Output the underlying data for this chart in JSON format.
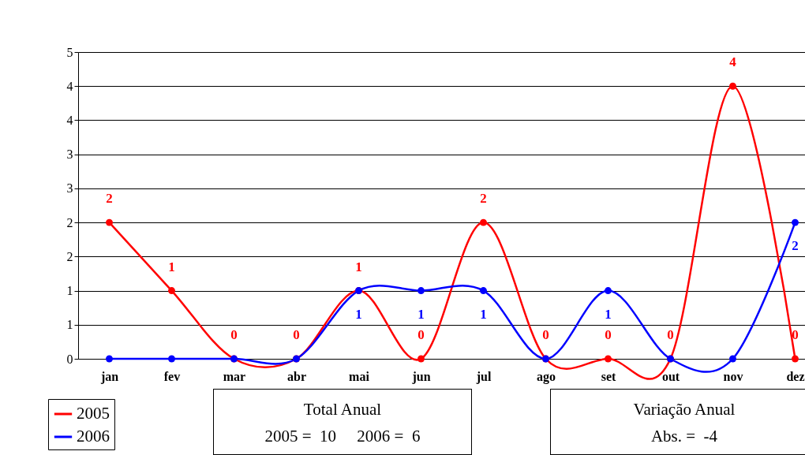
{
  "chart_data": {
    "type": "line",
    "categories": [
      "jan",
      "fev",
      "mar",
      "abr",
      "mai",
      "jun",
      "jul",
      "ago",
      "set",
      "out",
      "nov",
      "dez"
    ],
    "series": [
      {
        "name": "2005",
        "color": "#ff0000",
        "values": [
          2,
          1,
          0,
          0,
          1,
          0,
          2,
          0,
          0,
          0,
          4,
          0
        ],
        "value_labels": [
          "2",
          "1",
          "0",
          "0",
          "1",
          "0",
          "2",
          "0",
          "0",
          "0",
          "4",
          "0"
        ]
      },
      {
        "name": "2006",
        "color": "#0000ff",
        "values": [
          0,
          0,
          0,
          0,
          1,
          1,
          1,
          0,
          1,
          0,
          0,
          2
        ],
        "value_labels": [
          null,
          null,
          null,
          null,
          "1",
          "1",
          "1",
          null,
          "1",
          null,
          null,
          "2"
        ]
      }
    ],
    "ylim": [
      0,
      4.5
    ],
    "yticks": [
      0,
      {
        "value": 0.5,
        "label": "1"
      },
      1,
      {
        "value": 1.5,
        "label": "2"
      },
      2,
      {
        "value": 2.5,
        "label": "3"
      },
      3,
      {
        "value": 3.5,
        "label": "4"
      },
      4,
      {
        "value": 4.5,
        "label": "5"
      }
    ],
    "grid": "y",
    "legend": "bottom left",
    "marker": "circle",
    "line_style": "solid",
    "annotations": [
      "Total Anual\n2005 =  10     2006 =  6",
      "Variação Anual\nAbs. =  -4"
    ]
  }
}
